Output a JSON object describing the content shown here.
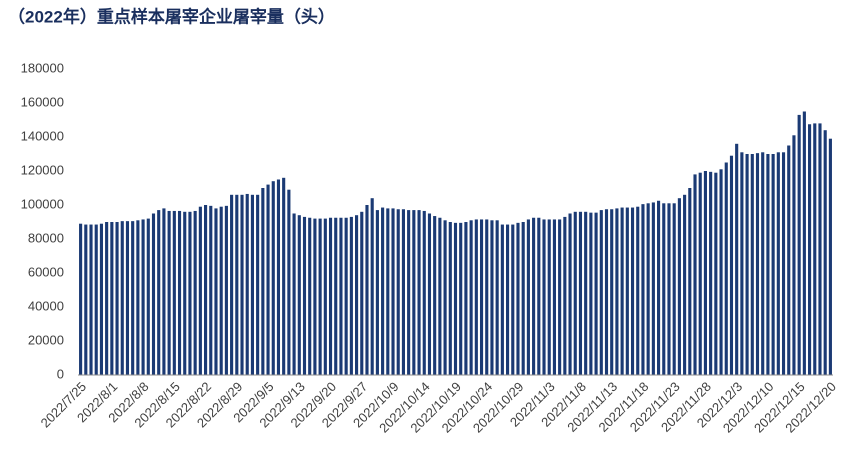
{
  "chart_data": {
    "type": "bar",
    "title": "（2022年）重点样本屠宰企业屠宰量（头）",
    "categories": [
      "2022/7/25",
      null,
      null,
      null,
      null,
      null,
      "2022/8/1",
      null,
      null,
      null,
      null,
      null,
      "2022/8/8",
      null,
      null,
      null,
      null,
      null,
      "2022/8/15",
      null,
      null,
      null,
      null,
      null,
      "2022/8/22",
      null,
      null,
      null,
      null,
      null,
      "2022/8/29",
      null,
      null,
      null,
      null,
      null,
      "2022/9/5",
      null,
      null,
      null,
      null,
      null,
      "2022/9/13",
      null,
      null,
      null,
      null,
      null,
      "2022/9/20",
      null,
      null,
      null,
      null,
      null,
      "2022/9/27",
      null,
      null,
      null,
      null,
      null,
      "2022/10/9",
      null,
      null,
      null,
      null,
      null,
      "2022/10/14",
      null,
      null,
      null,
      null,
      null,
      "2022/10/19",
      null,
      null,
      null,
      null,
      null,
      "2022/10/24",
      null,
      null,
      null,
      null,
      null,
      "2022/10/29",
      null,
      null,
      null,
      null,
      null,
      "2022/11/3",
      null,
      null,
      null,
      null,
      null,
      "2022/11/8",
      null,
      null,
      null,
      null,
      null,
      "2022/11/13",
      null,
      null,
      null,
      null,
      null,
      "2022/11/18",
      null,
      null,
      null,
      null,
      null,
      "2022/11/23",
      null,
      null,
      null,
      null,
      null,
      "2022/11/28",
      null,
      null,
      null,
      null,
      null,
      "2022/12/3",
      null,
      null,
      null,
      null,
      null,
      "2022/12/10",
      null,
      null,
      null,
      null,
      null,
      "2022/12/15",
      null,
      null,
      null,
      null,
      null,
      "2022/12/20"
    ],
    "values": [
      89000,
      88500,
      88500,
      88500,
      89000,
      90000,
      90000,
      90000,
      90500,
      90500,
      90500,
      91000,
      91500,
      92000,
      95000,
      97000,
      98000,
      96500,
      96500,
      96500,
      96000,
      96000,
      96500,
      99000,
      100000,
      99500,
      98000,
      99000,
      99500,
      106000,
      106000,
      106000,
      106500,
      106000,
      106000,
      110000,
      112000,
      114000,
      115000,
      116000,
      109000,
      95000,
      94000,
      93000,
      92500,
      92000,
      92000,
      92000,
      92500,
      92500,
      92500,
      92500,
      93000,
      94000,
      96000,
      100000,
      104000,
      97000,
      98500,
      98000,
      98000,
      97500,
      97500,
      97000,
      97000,
      97000,
      96500,
      95000,
      93500,
      92500,
      91000,
      90000,
      89500,
      89500,
      90000,
      91000,
      91500,
      91500,
      91500,
      91000,
      91000,
      88500,
      88500,
      88500,
      89500,
      90000,
      91500,
      92500,
      92500,
      91500,
      91500,
      91500,
      91500,
      93000,
      95000,
      96000,
      96000,
      96000,
      95500,
      95500,
      97000,
      97500,
      97500,
      98000,
      98500,
      98500,
      98500,
      99000,
      100500,
      101000,
      101500,
      102500,
      101000,
      101000,
      101000,
      104000,
      106000,
      110000,
      118000,
      119000,
      120000,
      119500,
      119000,
      121000,
      125000,
      129000,
      136000,
      131000,
      130000,
      130000,
      130500,
      131000,
      130000,
      130000,
      131000,
      131000,
      135000,
      141000,
      153000,
      155000,
      147500,
      148000,
      148000,
      144000,
      139000
    ],
    "color": "#1b3a74",
    "ylim": [
      0,
      180000
    ],
    "yticks": [
      0,
      20000,
      40000,
      60000,
      80000,
      100000,
      120000,
      140000,
      160000,
      180000
    ]
  }
}
